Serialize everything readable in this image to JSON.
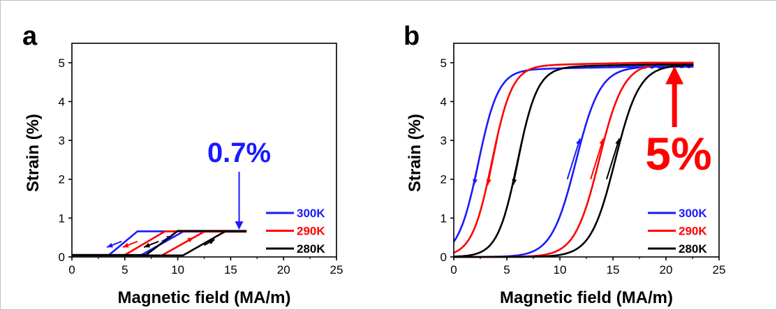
{
  "chart_data": [
    {
      "type": "line",
      "panel_label": "a",
      "xlabel": "Magnetic field (MA/m)",
      "ylabel": "Strain (%)",
      "xlim": [
        0,
        25
      ],
      "ylim": [
        0,
        5.5
      ],
      "xticks": [
        0,
        5,
        10,
        15,
        20,
        25
      ],
      "yticks": [
        0,
        1,
        2,
        3,
        4,
        5
      ],
      "legend_position": "bottom-right",
      "annotation": {
        "text": "0.7%",
        "color": "#1a1aff",
        "x": 15.8,
        "y": 0.7
      },
      "series": [
        {
          "name": "300K",
          "color": "#1a1aff",
          "max_strain": 0.65,
          "up": [
            6.5,
            10.5
          ],
          "down": [
            3.5,
            6.2
          ],
          "hmax": 16.5
        },
        {
          "name": "290K",
          "color": "#ff0000",
          "max_strain": 0.65,
          "up": [
            8.5,
            12.5
          ],
          "down": [
            5.0,
            8.8
          ],
          "hmax": 16.5
        },
        {
          "name": "280K",
          "color": "#000000",
          "max_strain": 0.66,
          "up": [
            10.5,
            14.5
          ],
          "down": [
            7.0,
            10.0
          ],
          "hmax": 16.5
        }
      ]
    },
    {
      "type": "line",
      "panel_label": "b",
      "xlabel": "Magnetic field (MA/m)",
      "ylabel": "Strain (%)",
      "xlim": [
        0,
        25
      ],
      "ylim": [
        0,
        5.5
      ],
      "xticks": [
        0,
        5,
        10,
        15,
        20,
        25
      ],
      "yticks": [
        0,
        1,
        2,
        3,
        4,
        5
      ],
      "legend_position": "bottom-right",
      "annotation": {
        "text": "5%",
        "color": "#ff0000",
        "x": 20.8,
        "y": 4.95
      },
      "series": [
        {
          "name": "300K",
          "color": "#1a1aff",
          "max_strain": 4.9,
          "up_center": 11.5,
          "down_center": 2.3,
          "hmax": 22.6
        },
        {
          "name": "290K",
          "color": "#ff0000",
          "max_strain": 5.0,
          "up_center": 13.7,
          "down_center": 3.6,
          "hmax": 22.6
        },
        {
          "name": "280K",
          "color": "#000000",
          "max_strain": 4.95,
          "up_center": 15.2,
          "down_center": 6.0,
          "hmax": 22.6
        }
      ]
    }
  ]
}
